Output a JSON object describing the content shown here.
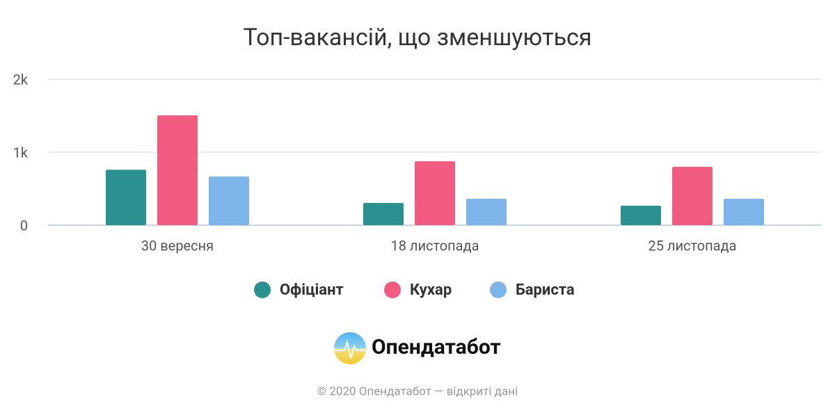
{
  "chart_data": {
    "type": "bar",
    "title": "Топ-вакансій, що зменшуються",
    "categories": [
      "30 вересня",
      "18 листопада",
      "25 листопада"
    ],
    "series": [
      {
        "name": "Офіціант",
        "color": "#2a9090",
        "values": [
          760,
          305,
          267
        ]
      },
      {
        "name": "Кухар",
        "color": "#f25c80",
        "values": [
          1505,
          876,
          800
        ]
      },
      {
        "name": "Бариста",
        "color": "#7db4ea",
        "values": [
          667,
          362,
          362
        ]
      }
    ],
    "ylim": [
      0,
      2000
    ],
    "yticks": [
      0,
      {
        "value": 1000,
        "label": "1k"
      },
      {
        "value": 2000,
        "label": "2k"
      }
    ],
    "grid": true
  },
  "footer": {
    "brand": "Опендатабот",
    "copyright": "© 2020 Опендатабот — відкриті дані"
  }
}
